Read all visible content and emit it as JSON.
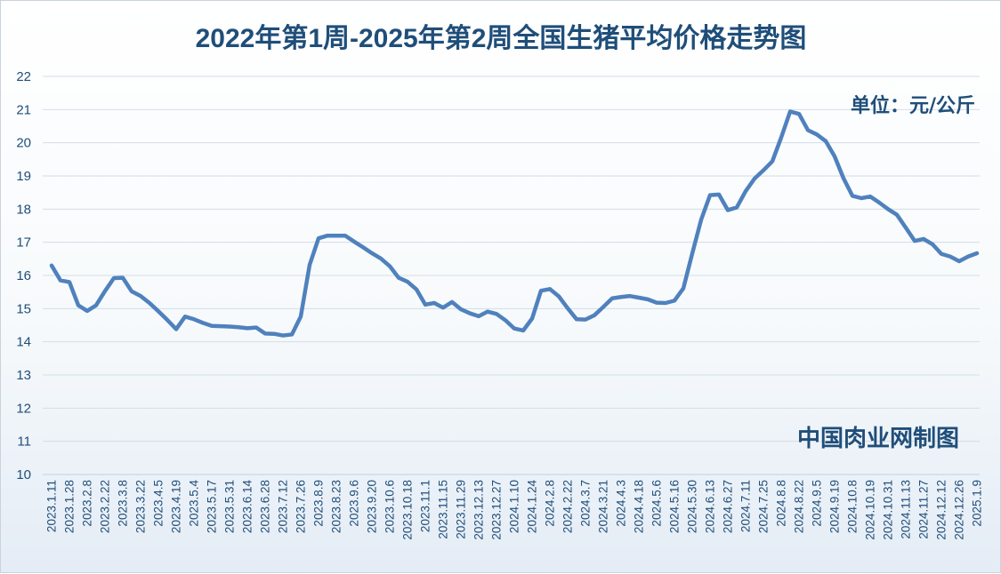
{
  "chart_data": {
    "type": "line",
    "title": "2022年第1周-2025年第2周全国生猪平均价格走势图",
    "unit_label": "单位：元/公斤",
    "watermark": "中国肉业网制图",
    "ylim": [
      10,
      22
    ],
    "yticks": [
      "10",
      "11",
      "12",
      "13",
      "14",
      "15",
      "16",
      "17",
      "18",
      "19",
      "20",
      "21",
      "22"
    ],
    "grid": true,
    "line_color": "#4f81bd",
    "title_color": "#1f4e79",
    "x_tick_labels": [
      "2023.1.11",
      "2023.1.28",
      "2023.2.8",
      "2023.2.22",
      "2023.3.8",
      "2023.3.22",
      "2023.4.5",
      "2023.4.19",
      "2023.5.4",
      "2023.5.17",
      "2023.5.31",
      "2023.6.14",
      "2023.6.28",
      "2023.7.12",
      "2023.7.26",
      "2023.8.9",
      "2023.8.23",
      "2023.9.6",
      "2023.9.20",
      "2023.10.6",
      "2023.10.18",
      "2023.11.1",
      "2023.11.15",
      "2023.11.29",
      "2023.12.13",
      "2023.12.27",
      "2024.1.10",
      "2024.1.24",
      "2024.2.8",
      "2024.2.22",
      "2024.3.7",
      "2024.3.21",
      "2024.4.3",
      "2024.4.18",
      "2024.5.6",
      "2024.5.16",
      "2024.5.30",
      "2024.6.13",
      "2024.6.27",
      "2024.7.11",
      "2024.7.25",
      "2024.8.8",
      "2024.8.22",
      "2024.9.5",
      "2024.9.19",
      "2024.10.8",
      "2024.10.19",
      "2024.10.31",
      "2024.11.13",
      "2024.11.27",
      "2024.12.12",
      "2024.12.26",
      "2025.1.9"
    ],
    "series": [
      {
        "values": [
          16.3,
          15.85,
          15.8,
          15.1,
          14.93,
          15.1,
          15.53,
          15.92,
          15.93,
          15.52,
          15.38,
          15.17,
          14.92,
          14.66,
          14.38,
          14.76,
          14.68,
          14.57,
          14.48,
          14.47,
          14.46,
          14.44,
          14.41,
          14.43,
          14.25,
          14.24,
          14.19,
          14.22,
          14.76,
          16.32,
          17.12,
          17.2,
          17.2,
          17.2,
          17.02,
          16.85,
          16.67,
          16.51,
          16.28,
          15.93,
          15.81,
          15.58,
          15.12,
          15.17,
          15.03,
          15.2,
          14.98,
          14.86,
          14.77,
          14.91,
          14.84,
          14.65,
          14.4,
          14.34,
          14.7,
          15.54,
          15.59,
          15.37,
          15.01,
          14.68,
          14.67,
          14.8,
          15.05,
          15.31,
          15.35,
          15.38,
          15.33,
          15.28,
          15.18,
          15.17,
          15.24,
          15.61,
          16.66,
          17.68,
          18.42,
          18.44,
          17.97,
          18.05,
          18.54,
          18.92,
          19.17,
          19.44,
          20.16,
          20.94,
          20.87,
          20.38,
          20.25,
          20.05,
          19.59,
          18.93,
          18.4,
          18.33,
          18.38,
          18.2,
          18.0,
          17.83,
          17.44,
          17.04,
          17.1,
          16.94,
          16.65,
          16.57,
          16.43,
          16.57,
          16.67
        ]
      }
    ]
  }
}
